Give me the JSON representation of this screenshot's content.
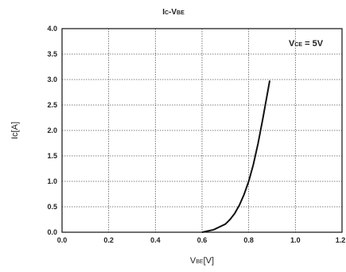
{
  "chart_data": {
    "type": "line",
    "title": {
      "main": "I",
      "main_sub": "C",
      "dash": "-V",
      "dash_sub": "BE"
    },
    "xlabel": {
      "main": "V",
      "sub": "BE",
      "rest": "[V]"
    },
    "ylabel": "I₄[A]",
    "ylabel_text": "Ic[A]",
    "annotation": {
      "main": "V",
      "sub": "CE",
      "rest": " = 5V"
    },
    "xlim": [
      0.0,
      1.2
    ],
    "ylim": [
      0.0,
      4.0
    ],
    "x_ticks": [
      "0.0",
      "0.2",
      "0.4",
      "0.6",
      "0.8",
      "1.0",
      "1.2"
    ],
    "y_ticks": [
      "0.0",
      "0.5",
      "1.0",
      "1.5",
      "2.0",
      "2.5",
      "3.0",
      "3.5",
      "4.0"
    ],
    "grid": true,
    "series": [
      {
        "x": [
          0.6,
          0.65,
          0.7,
          0.72,
          0.74,
          0.76,
          0.78,
          0.8,
          0.82,
          0.84,
          0.86,
          0.88,
          0.89
        ],
        "y": [
          0.0,
          0.05,
          0.16,
          0.25,
          0.37,
          0.53,
          0.74,
          1.0,
          1.33,
          1.74,
          2.22,
          2.72,
          2.98
        ]
      }
    ]
  }
}
